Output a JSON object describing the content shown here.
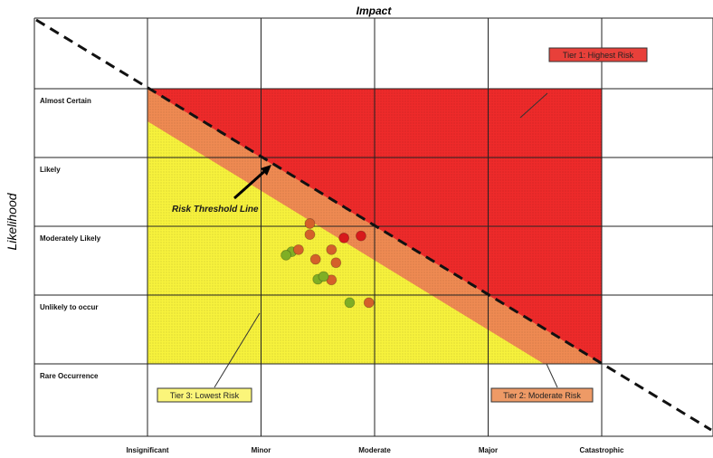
{
  "chart_data": {
    "type": "scatter",
    "title": "Impact",
    "xlabel": "",
    "ylabel": "Likelihood",
    "x_categories": [
      "Insignificant",
      "Minor",
      "Moderate",
      "Major",
      "Catastrophic"
    ],
    "y_categories": [
      "Almost Certain",
      "Likely",
      "Moderately Likely",
      "Unlikely to occur",
      "Rare Occurrence"
    ],
    "grid": true,
    "zones": [
      {
        "name": "Tier 1: Highest Risk",
        "color": "#ee2a2a"
      },
      {
        "name": "Tier 2: Moderate Risk",
        "color": "#ef8a52"
      },
      {
        "name": "Tier 3: Lowest Risk",
        "color": "#f7f23c"
      }
    ],
    "threshold_label": "Risk Threshold Line",
    "points": [
      {
        "x": 2.73,
        "y": 2.83,
        "color": "#d7191c"
      },
      {
        "x": 2.88,
        "y": 2.86,
        "color": "#d7191c"
      },
      {
        "x": 2.43,
        "y": 3.04,
        "color": "#d4602a"
      },
      {
        "x": 2.43,
        "y": 2.88,
        "color": "#d4602a"
      },
      {
        "x": 2.62,
        "y": 2.66,
        "color": "#d4602a"
      },
      {
        "x": 2.66,
        "y": 2.47,
        "color": "#d4602a"
      },
      {
        "x": 2.48,
        "y": 2.52,
        "color": "#d4602a"
      },
      {
        "x": 2.62,
        "y": 2.22,
        "color": "#d4602a"
      },
      {
        "x": 2.95,
        "y": 1.89,
        "color": "#d4602a"
      },
      {
        "x": 2.27,
        "y": 2.63,
        "color": "#7fae25"
      },
      {
        "x": 2.22,
        "y": 2.58,
        "color": "#7fae25"
      },
      {
        "x": 2.33,
        "y": 2.66,
        "color": "#d4602a"
      },
      {
        "x": 2.5,
        "y": 2.23,
        "color": "#7fae25"
      },
      {
        "x": 2.55,
        "y": 2.27,
        "color": "#7fae25"
      },
      {
        "x": 2.78,
        "y": 1.89,
        "color": "#7fae25"
      }
    ]
  }
}
